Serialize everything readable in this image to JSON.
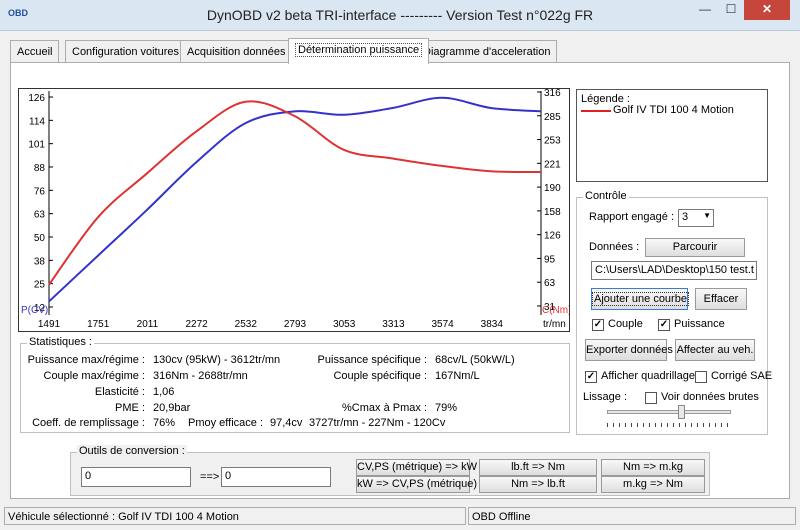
{
  "window": {
    "title": "DynOBD v2 beta TRI-interface --------- Version Test n°022g FR",
    "icon_label": "OBD",
    "minimize": "—",
    "maximize": "☐",
    "close": "✕"
  },
  "tabs": [
    {
      "label": "Accueil"
    },
    {
      "label": "Configuration voitures"
    },
    {
      "label": "Acquisition données"
    },
    {
      "label": "Détermination puissance"
    },
    {
      "label": "Diagramme d'acceleration"
    }
  ],
  "chart_data": {
    "type": "line",
    "x": [
      1491,
      1751,
      2011,
      2272,
      2532,
      2793,
      3053,
      3313,
      3574,
      3834,
      4100
    ],
    "x_ticks": [
      "1491",
      "1751",
      "2011",
      "2272",
      "2532",
      "2793",
      "3053",
      "3313",
      "3574",
      "3834"
    ],
    "x_unit": "tr/mn",
    "y_left_ticks": [
      "126",
      "114",
      "101",
      "88",
      "76",
      "63",
      "50",
      "38",
      "25",
      "12"
    ],
    "y_left_label": "P(CV)",
    "y_left_range": [
      0,
      132
    ],
    "y_right_ticks": [
      "316",
      "285",
      "253",
      "221",
      "190",
      "158",
      "126",
      "95",
      "63",
      "31"
    ],
    "y_right_label": "C(Nm)",
    "y_right_range": [
      0,
      332
    ],
    "series": [
      {
        "axis": "left",
        "color": "#3333cc",
        "values": [
          8,
          35,
          62,
          90,
          113,
          120,
          118,
          122,
          128,
          122,
          120
        ]
      },
      {
        "axis": "right",
        "color": "#dd3333",
        "values": [
          45,
          145,
          210,
          272,
          316,
          295,
          245,
          232,
          221,
          213,
          212
        ]
      }
    ]
  },
  "legend": {
    "title": "Légende :",
    "items": [
      {
        "label": "Golf IV TDI 100 4 Motion",
        "color": "#e02020"
      }
    ]
  },
  "controle": {
    "title": "Contrôle",
    "rapport_label": "Rapport engagé :",
    "rapport_value": "3",
    "donnees_label": "Données :",
    "parcourir": "Parcourir",
    "file_path": "C:\\Users\\LAD\\Desktop\\150 test.t",
    "ajouter_courbe": "Ajouter une courbe",
    "effacer": "Effacer",
    "couple_label": "Couple",
    "puissance_label": "Puissance",
    "exporter": "Exporter données",
    "affecter": "Affecter au veh.",
    "quadrillage_label": "Afficher quadrillage",
    "corrige_label": "Corrigé SAE",
    "lissage_label": "Lissage :",
    "voir_brutes_label": "Voir données brutes"
  },
  "statistiques": {
    "title": "Statistiques :",
    "rows": [
      {
        "label": "Puissance max/régime :",
        "value": "130cv (95kW) - 3612tr/mn"
      },
      {
        "label": "Couple max/régime :",
        "value": "316Nm - 2688tr/mn"
      },
      {
        "label": "Elasticité :",
        "value": "1,06"
      },
      {
        "label": "PME :",
        "value": "20,9bar"
      },
      {
        "label": "Coeff. de remplissage :",
        "value": "76%"
      }
    ],
    "pmoy_label": "Pmoy efficace :",
    "pmoy_value": "97,4cv",
    "right_rows": [
      {
        "label": "Puissance spécifique :",
        "value": "68cv/L (50kW/L)"
      },
      {
        "label": "Couple spécifique :",
        "value": "167Nm/L"
      }
    ],
    "cmax_label": "%Cmax à Pmax :",
    "cmax_value": "79%",
    "summary": "3727tr/mn - 227Nm - 120Cv"
  },
  "outils": {
    "title": "Outils de conversion :",
    "input_left": "0",
    "arrow": "==>",
    "input_right": "0",
    "btn_cv_kw": "CV,PS (métrique) => kW",
    "btn_kw_cv": "kW => CV,PS (métrique)",
    "btn_lbft_nm": "lb.ft => Nm",
    "btn_nm_lbft": "Nm => lb.ft",
    "btn_nm_mkg": "Nm => m.kg",
    "btn_mkg_nm": "m.kg => Nm"
  },
  "status": {
    "vehicle": "Véhicule sélectionné : Golf IV TDI 100 4 Motion",
    "connection": "OBD Offline"
  }
}
